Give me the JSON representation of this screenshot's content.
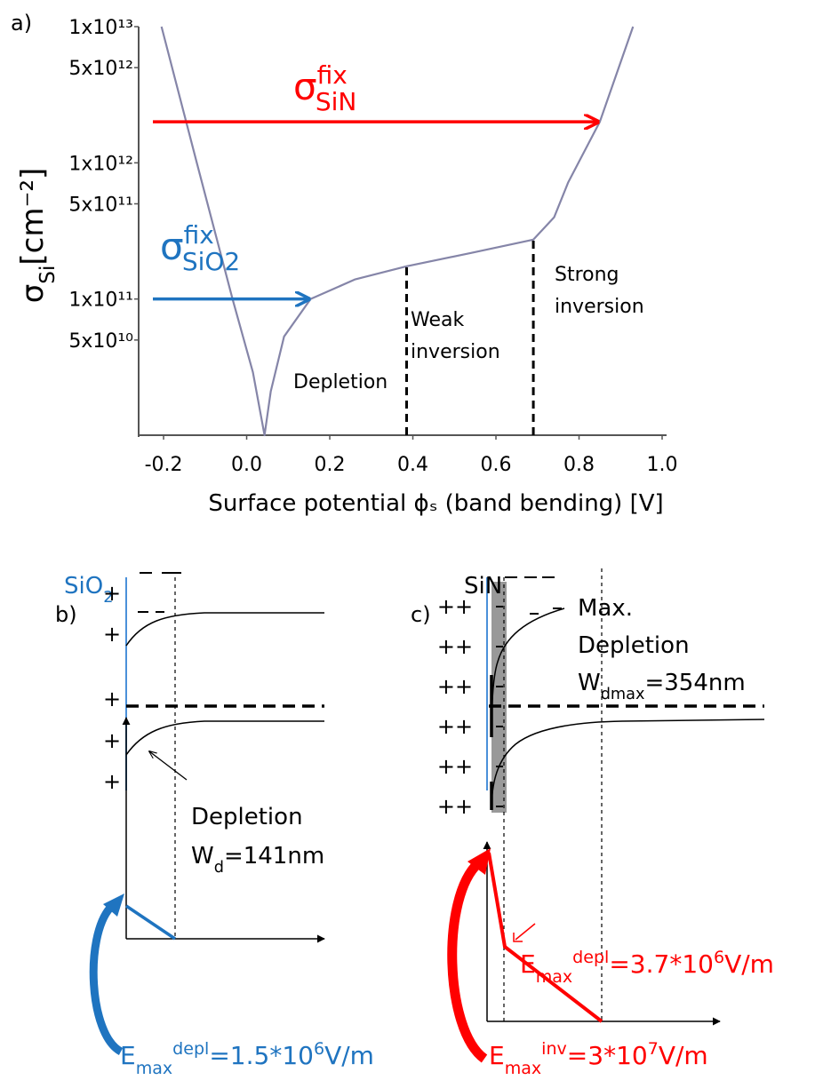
{
  "figure_label": "a)",
  "chart_data": {
    "type": "line",
    "xlabel": "Surface potential ϕₛ (band bending) [V]",
    "ylabel": {
      "symbol": "σ",
      "sub": "Si",
      "unit": "[cm⁻²]"
    },
    "x": [
      -0.205,
      -0.12,
      -0.034,
      0.015,
      0.043,
      0.058,
      0.09,
      0.154,
      0.26,
      0.385,
      0.54,
      0.69,
      0.74,
      0.774,
      0.85,
      0.93
    ],
    "series": [
      {
        "color": "#8585a8",
        "values": [
          10000000000000.0,
          1000000000000.0,
          100000000000.0,
          29000000000.0,
          10000000000.0,
          21000000000.0,
          53000000000.0,
          100000000000.0,
          139000000000.0,
          174000000000.0,
          218000000000.0,
          273000000000.0,
          398000000000.0,
          720000000000.0,
          2000000000000.0,
          10000000000000.0
        ]
      }
    ],
    "xlim": [
      -0.26,
      1.0
    ],
    "ylim": [
      10000000000.0,
      10000000000000.0
    ],
    "yscale": "log",
    "xticks": [
      -0.2,
      {
        "value": 0,
        "label": "0.0"
      },
      0.2,
      0.4,
      0.6,
      0.8,
      {
        "value": 1,
        "label": "1.0"
      }
    ],
    "yticks": [
      {
        "value": 10000000000000.0,
        "label": "1x10¹³"
      },
      {
        "value": 5000000000000.0,
        "label": "5x10¹²"
      },
      {
        "value": 1000000000000.0,
        "label": "1x10¹²"
      },
      {
        "value": 500000000000.0,
        "label": "5x10¹¹"
      },
      {
        "value": 100000000000.0,
        "label": "1x10¹¹"
      },
      {
        "value": 50000000000.0,
        "label": "5x10¹⁰"
      }
    ],
    "arrows": [
      {
        "symbol": "σ",
        "sup": "fix",
        "sub": "SiN",
        "y": 2000000000000.0,
        "x_end": 0.85,
        "color": "#ff0000"
      },
      {
        "symbol": "σ",
        "sup": "fix",
        "sub": "SiO2",
        "y": 100000000000.0,
        "x_end": 0.154,
        "color": "#1f74c0"
      }
    ],
    "boundaries": [
      {
        "x": 0.385,
        "y": 174000000000.0
      },
      {
        "x": 0.69,
        "y": 273000000000.0
      }
    ],
    "regions": [
      [
        "Depletion"
      ],
      [
        "Weak",
        "inversion"
      ],
      [
        "Strong",
        "inversion"
      ]
    ]
  },
  "panel_b": {
    "label": "b)",
    "material": {
      "main": "SiO",
      "sub": "2"
    },
    "charge": "+",
    "depletion": "Depletion",
    "width": {
      "main": "W",
      "sub": "d",
      "rest": "=141nm"
    },
    "field": {
      "main": "E",
      "sub": "max",
      "sup": "depl",
      "rest": "=1.5*10",
      "exp": "6",
      "unit": "V/m"
    }
  },
  "panel_c": {
    "label": "c)",
    "material": "SiN",
    "charge": "++",
    "max_depletion": [
      "Max.",
      "Depletion"
    ],
    "width": {
      "main": "W",
      "sub": "dmax",
      "rest": "=354nm"
    },
    "field_depl": {
      "main": "E",
      "sub": "max",
      "sup": "depl",
      "rest": "=3.7*10",
      "exp": "6",
      "unit": "V/m"
    },
    "field_inv": {
      "main": "E",
      "sub": "max",
      "sup": "inv",
      "rest": "=3*10",
      "exp": "7",
      "unit": "V/m"
    }
  }
}
